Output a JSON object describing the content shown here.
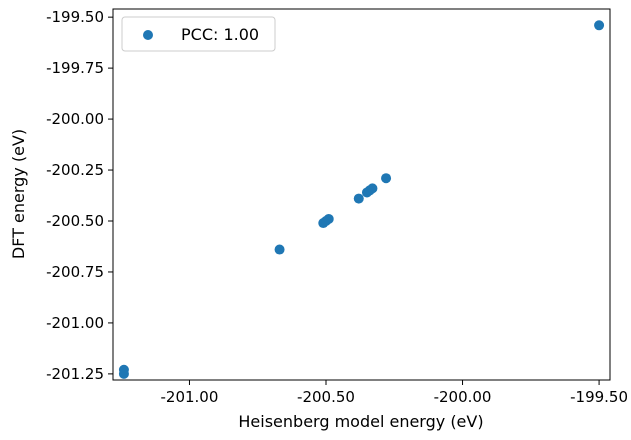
{
  "chart_data": {
    "type": "scatter",
    "xlabel": "Heisenberg model energy (eV)",
    "ylabel": "DFT energy (eV)",
    "xlim": [
      -201.28,
      -199.46
    ],
    "ylim": [
      -201.28,
      -199.46
    ],
    "x_ticks": [
      -201.0,
      -200.5,
      -200.0,
      -199.5
    ],
    "x_tick_labels": [
      "-201.00",
      "-200.50",
      "-200.00",
      "-199.50"
    ],
    "y_ticks": [
      -201.25,
      -201.0,
      -200.75,
      -200.5,
      -200.25,
      -200.0,
      -199.75,
      -199.5
    ],
    "y_tick_labels": [
      "-201.25",
      "-201.00",
      "-200.75",
      "-200.50",
      "-200.25",
      "-200.00",
      "-199.75",
      "-199.50"
    ],
    "grid": false,
    "legend_position": "top-left",
    "series": [
      {
        "name": "PCC: 1.00",
        "color": "#1f77b4",
        "x": [
          -201.24,
          -201.24,
          -200.67,
          -200.51,
          -200.5,
          -200.49,
          -200.38,
          -200.35,
          -200.34,
          -200.33,
          -200.28,
          -199.5
        ],
        "y": [
          -201.23,
          -201.25,
          -200.64,
          -200.51,
          -200.5,
          -200.49,
          -200.39,
          -200.36,
          -200.35,
          -200.34,
          -200.29,
          -199.54
        ]
      }
    ]
  }
}
